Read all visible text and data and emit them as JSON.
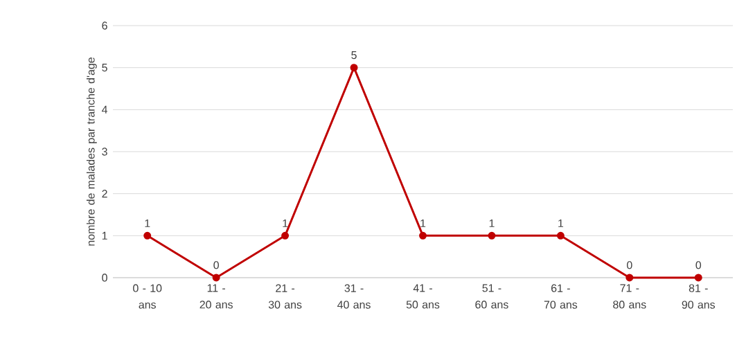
{
  "chart_data": {
    "type": "line",
    "ylabel": "nombre de malades par tranche d'age",
    "categories": [
      "0 - 10 ans",
      "11 - 20 ans",
      "21 - 30 ans",
      "31 - 40 ans",
      "41 - 50 ans",
      "51 - 60 ans",
      "61 - 70 ans",
      "71 - 80 ans",
      "81 - 90 ans"
    ],
    "values": [
      1,
      0,
      1,
      5,
      1,
      1,
      1,
      0,
      0
    ],
    "color": "#c00000",
    "ylim": [
      0,
      6
    ],
    "yticks": [
      0,
      1,
      2,
      3,
      4,
      5,
      6
    ],
    "grid": "y",
    "marker": "circle",
    "line_style": "solid",
    "data_labels": true
  }
}
